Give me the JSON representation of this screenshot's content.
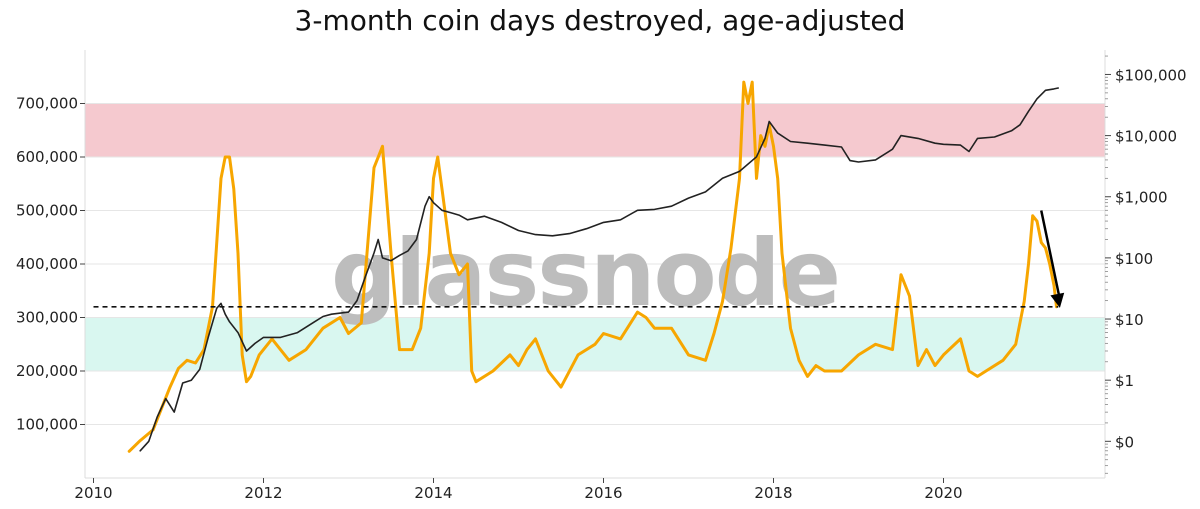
{
  "chart_data": {
    "type": "line",
    "title": "3-month coin days destroyed, age-adjusted",
    "watermark": "glassnode",
    "x_ticks": [
      "2010",
      "2012",
      "2014",
      "2016",
      "2018",
      "2020"
    ],
    "y_left_ticks": [
      "100,000",
      "200,000",
      "300,000",
      "400,000",
      "500,000",
      "600,000",
      "700,000"
    ],
    "y_left_tick_values": [
      100000,
      200000,
      300000,
      400000,
      500000,
      600000,
      700000
    ],
    "y_right_ticks": [
      "$0",
      "$1",
      "$10",
      "$100",
      "$1,000",
      "$10,000",
      "$100,000"
    ],
    "y_right_tick_exponents": [
      -1,
      0,
      1,
      2,
      3,
      4,
      5
    ],
    "x_range": [
      2009.9,
      2021.9
    ],
    "y_left_range": [
      0,
      800000
    ],
    "y_right_log_range": [
      -1.6,
      5.4
    ],
    "bands": [
      {
        "name": "high",
        "from": 600000,
        "to": 700000,
        "color": "#f5c9cf"
      },
      {
        "name": "low",
        "from": 200000,
        "to": 300000,
        "color": "#d9f7f0"
      }
    ],
    "threshold": {
      "value": 320000,
      "from": 2010.0,
      "to": 2021.35,
      "style": "dashed"
    },
    "trend_arrow": {
      "x_from": 2021.15,
      "y_from": 500000,
      "x_to": 2021.37,
      "y_to": 318000
    },
    "series": [
      {
        "type": "cdd",
        "color": "#f7a600",
        "axis": "left",
        "x": [
          2010.42,
          2010.55,
          2010.7,
          2010.8,
          2010.9,
          2011.0,
          2011.1,
          2011.2,
          2011.3,
          2011.4,
          2011.5,
          2011.55,
          2011.6,
          2011.65,
          2011.7,
          2011.75,
          2011.8,
          2011.85,
          2011.95,
          2012.1,
          2012.3,
          2012.5,
          2012.7,
          2012.9,
          2013.0,
          2013.15,
          2013.3,
          2013.4,
          2013.5,
          2013.6,
          2013.75,
          2013.85,
          2013.95,
          2014.0,
          2014.05,
          2014.1,
          2014.2,
          2014.3,
          2014.4,
          2014.45,
          2014.5,
          2014.7,
          2014.9,
          2015.0,
          2015.1,
          2015.2,
          2015.35,
          2015.5,
          2015.7,
          2015.9,
          2016.0,
          2016.2,
          2016.4,
          2016.5,
          2016.6,
          2016.8,
          2017.0,
          2017.2,
          2017.3,
          2017.4,
          2017.5,
          2017.6,
          2017.65,
          2017.7,
          2017.75,
          2017.8,
          2017.85,
          2017.9,
          2017.95,
          2018.0,
          2018.05,
          2018.1,
          2018.2,
          2018.3,
          2018.4,
          2018.5,
          2018.6,
          2018.8,
          2019.0,
          2019.2,
          2019.4,
          2019.5,
          2019.6,
          2019.7,
          2019.8,
          2019.9,
          2020.0,
          2020.2,
          2020.3,
          2020.4,
          2020.5,
          2020.7,
          2020.85,
          2020.95,
          2021.0,
          2021.05,
          2021.1,
          2021.15,
          2021.2,
          2021.25,
          2021.3,
          2021.33
        ],
        "y": [
          50000,
          70000,
          90000,
          130000,
          170000,
          205000,
          220000,
          215000,
          240000,
          320000,
          560000,
          600000,
          600000,
          540000,
          420000,
          230000,
          180000,
          190000,
          230000,
          260000,
          220000,
          240000,
          280000,
          300000,
          270000,
          290000,
          580000,
          620000,
          420000,
          240000,
          240000,
          280000,
          420000,
          560000,
          600000,
          540000,
          420000,
          380000,
          400000,
          200000,
          180000,
          200000,
          230000,
          210000,
          240000,
          260000,
          200000,
          170000,
          230000,
          250000,
          270000,
          260000,
          310000,
          300000,
          280000,
          280000,
          230000,
          220000,
          270000,
          330000,
          430000,
          560000,
          740000,
          700000,
          740000,
          560000,
          640000,
          620000,
          660000,
          620000,
          560000,
          420000,
          280000,
          220000,
          190000,
          210000,
          200000,
          200000,
          230000,
          250000,
          240000,
          380000,
          340000,
          210000,
          240000,
          210000,
          230000,
          260000,
          200000,
          190000,
          200000,
          220000,
          250000,
          330000,
          400000,
          490000,
          480000,
          440000,
          430000,
          400000,
          360000,
          320000
        ]
      },
      {
        "type": "price",
        "color": "#222222",
        "axis": "right-log",
        "x": [
          2010.55,
          2010.65,
          2010.75,
          2010.85,
          2010.95,
          2011.05,
          2011.15,
          2011.25,
          2011.35,
          2011.45,
          2011.5,
          2011.55,
          2011.6,
          2011.7,
          2011.8,
          2011.9,
          2012.0,
          2012.2,
          2012.4,
          2012.6,
          2012.7,
          2012.8,
          2013.0,
          2013.1,
          2013.2,
          2013.3,
          2013.35,
          2013.4,
          2013.5,
          2013.6,
          2013.7,
          2013.8,
          2013.9,
          2013.95,
          2014.0,
          2014.1,
          2014.2,
          2014.3,
          2014.4,
          2014.6,
          2014.8,
          2015.0,
          2015.2,
          2015.4,
          2015.6,
          2015.8,
          2016.0,
          2016.2,
          2016.4,
          2016.6,
          2016.8,
          2017.0,
          2017.2,
          2017.4,
          2017.6,
          2017.8,
          2017.9,
          2017.95,
          2018.05,
          2018.2,
          2018.4,
          2018.6,
          2018.8,
          2018.9,
          2019.0,
          2019.2,
          2019.4,
          2019.5,
          2019.7,
          2019.9,
          2020.0,
          2020.2,
          2020.3,
          2020.4,
          2020.6,
          2020.8,
          2020.9,
          2021.0,
          2021.1,
          2021.2,
          2021.3,
          2021.35
        ],
        "y": [
          0.07,
          0.1,
          0.25,
          0.5,
          0.3,
          0.9,
          1.0,
          1.5,
          5,
          15,
          18,
          12,
          9,
          6,
          3,
          4,
          5,
          5,
          6,
          9,
          11,
          12,
          13,
          20,
          50,
          120,
          200,
          100,
          90,
          110,
          130,
          200,
          700,
          1000,
          800,
          600,
          550,
          500,
          420,
          480,
          380,
          280,
          240,
          230,
          250,
          300,
          380,
          420,
          600,
          620,
          700,
          950,
          1200,
          2000,
          2600,
          4500,
          9000,
          17000,
          11000,
          8000,
          7500,
          7000,
          6500,
          3900,
          3700,
          4000,
          6000,
          10000,
          9000,
          7500,
          7200,
          7000,
          5500,
          9000,
          9500,
          12000,
          15000,
          25000,
          40000,
          55000,
          58000,
          60000
        ]
      }
    ]
  }
}
